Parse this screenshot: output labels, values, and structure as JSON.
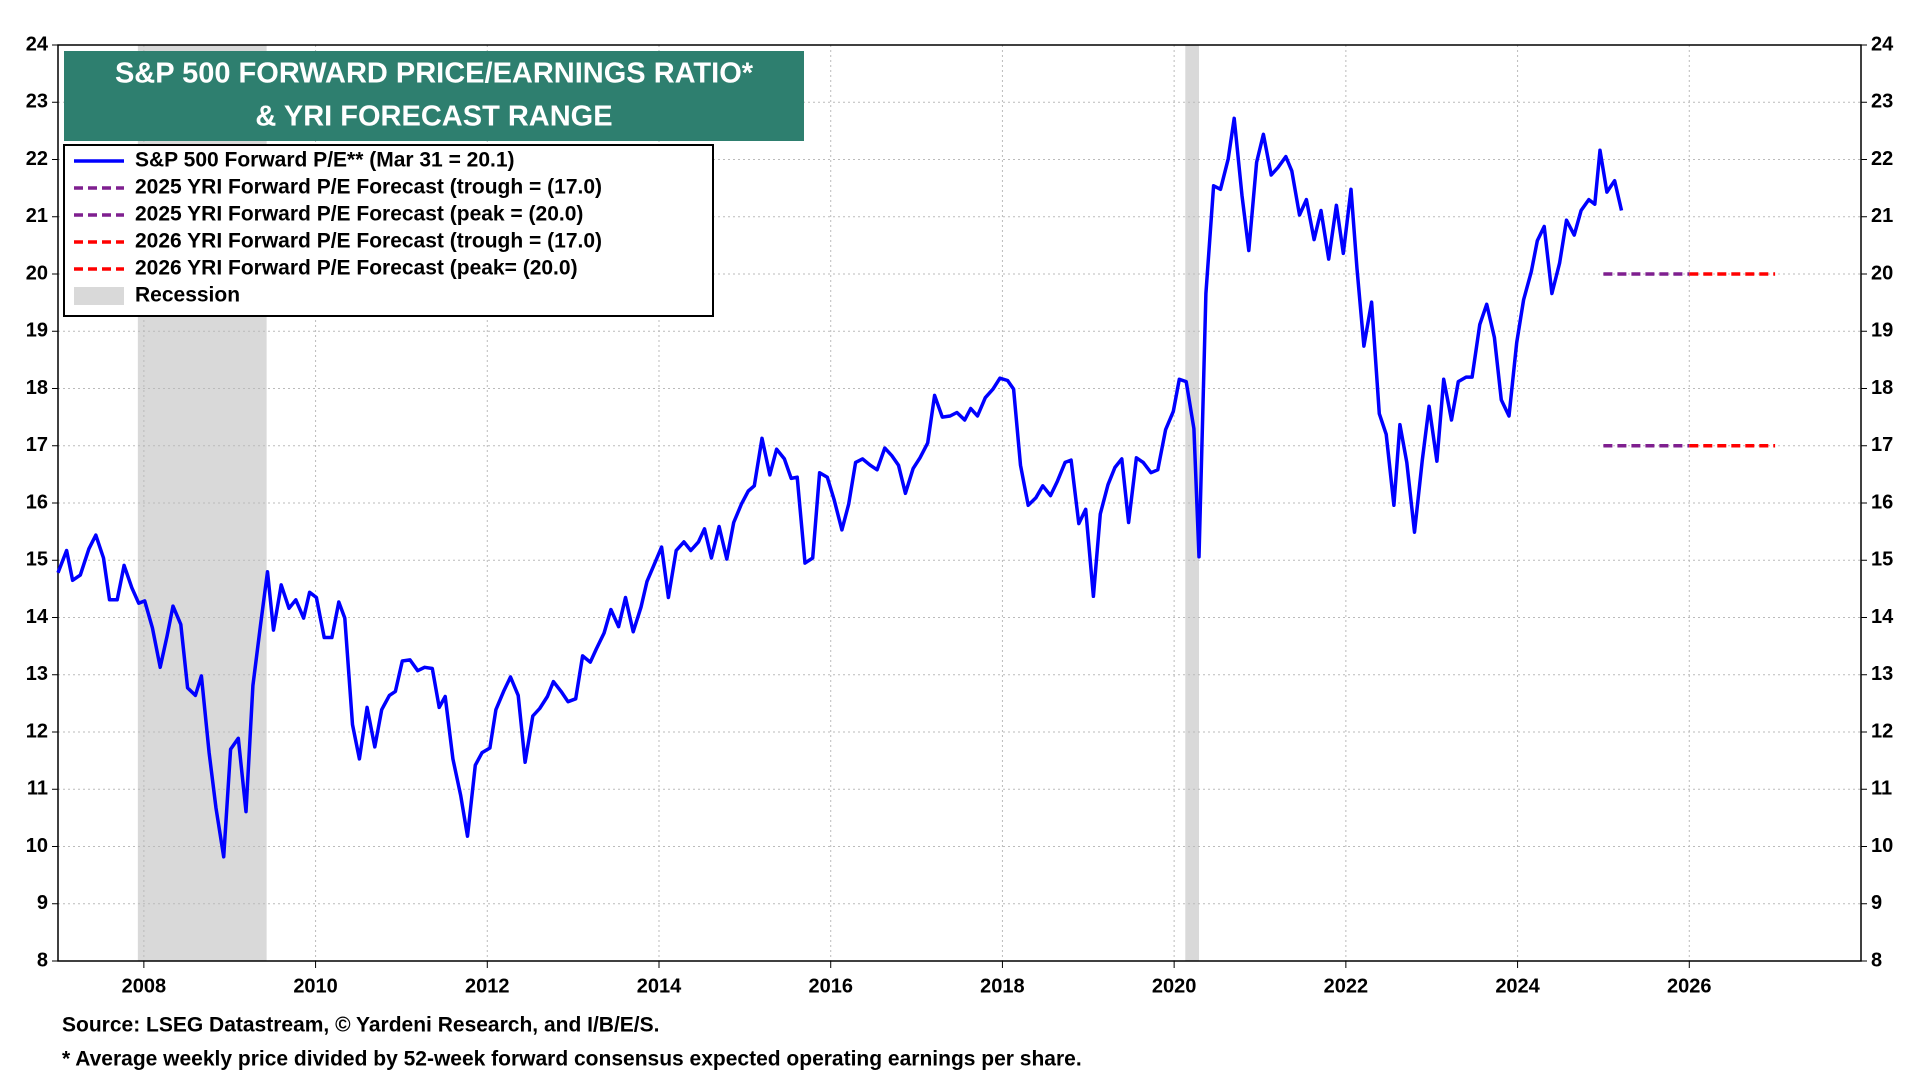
{
  "chart_data": {
    "type": "line",
    "title_lines": [
      "S&P 500 FORWARD PRICE/EARNINGS RATIO*",
      "& YRI FORECAST RANGE"
    ],
    "notes": [
      "Source: LSEG Datastream, © Yardeni Research, and I/B/E/S.",
      "* Average weekly price divided by 52-week forward consensus expected operating earnings per share."
    ],
    "xlim": [
      2007,
      2028
    ],
    "xticks": [
      2008,
      2010,
      2012,
      2014,
      2016,
      2018,
      2020,
      2022,
      2024,
      2026
    ],
    "ylim": [
      8,
      24
    ],
    "yticks": [
      8,
      9,
      10,
      11,
      12,
      13,
      14,
      15,
      16,
      17,
      18,
      19,
      20,
      21,
      22,
      23,
      24
    ],
    "grid": true,
    "recession": {
      "name": "Recession",
      "color": "#d9d9d9",
      "ranges": [
        [
          2007.93,
          2009.43
        ],
        [
          2020.13,
          2020.29
        ]
      ]
    },
    "series": [
      {
        "name": "S&P 500 Forward P/E** (Mar 31 = 20.1)",
        "color": "#0000ff",
        "dash": false,
        "x": [
          2007.0,
          2007.1,
          2007.17,
          2007.26,
          2007.36,
          2007.44,
          2007.53,
          2007.6,
          2007.69,
          2007.77,
          2007.86,
          2007.94,
          2008.01,
          2008.1,
          2008.19,
          2008.27,
          2008.34,
          2008.43,
          2008.51,
          2008.6,
          2008.67,
          2008.76,
          2008.84,
          2008.93,
          2009.01,
          2009.1,
          2009.19,
          2009.27,
          2009.36,
          2009.44,
          2009.51,
          2009.6,
          2009.69,
          2009.77,
          2009.86,
          2009.93,
          2010.01,
          2010.1,
          2010.19,
          2010.27,
          2010.34,
          2010.43,
          2010.51,
          2010.6,
          2010.69,
          2010.77,
          2010.86,
          2010.93,
          2011.01,
          2011.1,
          2011.19,
          2011.27,
          2011.36,
          2011.44,
          2011.51,
          2011.6,
          2011.69,
          2011.77,
          2011.86,
          2011.94,
          2012.03,
          2012.1,
          2012.19,
          2012.27,
          2012.36,
          2012.44,
          2012.53,
          2012.61,
          2012.7,
          2012.77,
          2012.86,
          2012.94,
          2013.03,
          2013.11,
          2013.2,
          2013.27,
          2013.36,
          2013.44,
          2013.53,
          2013.61,
          2013.7,
          2013.79,
          2013.86,
          2013.94,
          2014.03,
          2014.11,
          2014.2,
          2014.29,
          2014.37,
          2014.46,
          2014.53,
          2014.61,
          2014.7,
          2014.79,
          2014.87,
          2014.96,
          2015.04,
          2015.11,
          2015.2,
          2015.29,
          2015.37,
          2015.46,
          2015.54,
          2015.61,
          2015.7,
          2015.79,
          2015.87,
          2015.96,
          2016.04,
          2016.13,
          2016.21,
          2016.29,
          2016.37,
          2016.46,
          2016.54,
          2016.63,
          2016.71,
          2016.79,
          2016.87,
          2016.96,
          2017.04,
          2017.13,
          2017.21,
          2017.3,
          2017.39,
          2017.47,
          2017.56,
          2017.63,
          2017.71,
          2017.8,
          2017.89,
          2017.97,
          2018.06,
          2018.13,
          2018.21,
          2018.3,
          2018.39,
          2018.47,
          2018.56,
          2018.64,
          2018.73,
          2018.8,
          2018.89,
          2018.97,
          2019.06,
          2019.14,
          2019.23,
          2019.31,
          2019.39,
          2019.47,
          2019.56,
          2019.64,
          2019.73,
          2019.81,
          2019.9,
          2019.99,
          2020.06,
          2020.14,
          2020.23,
          2020.29,
          2020.37,
          2020.46,
          2020.54,
          2020.63,
          2020.7,
          2020.79,
          2020.87,
          2020.96,
          2021.04,
          2021.13,
          2021.21,
          2021.3,
          2021.37,
          2021.46,
          2021.54,
          2021.63,
          2021.71,
          2021.8,
          2021.89,
          2021.97,
          2022.06,
          2022.13,
          2022.21,
          2022.3,
          2022.39,
          2022.47,
          2022.56,
          2022.63,
          2022.71,
          2022.8,
          2022.89,
          2022.97,
          2023.06,
          2023.14,
          2023.23,
          2023.31,
          2023.4,
          2023.47,
          2023.56,
          2023.64,
          2023.73,
          2023.81,
          2023.9,
          2023.99,
          2024.07,
          2024.16,
          2024.23,
          2024.31,
          2024.4,
          2024.49,
          2024.57,
          2024.66,
          2024.74,
          2024.83,
          2024.9,
          2024.96,
          2025.04,
          2025.13,
          2025.21
        ],
        "values": [
          14.78,
          15.17,
          14.65,
          14.74,
          15.2,
          15.44,
          15.04,
          14.31,
          14.31,
          14.91,
          14.52,
          14.25,
          14.29,
          13.82,
          13.13,
          13.67,
          14.2,
          13.88,
          12.77,
          12.64,
          12.98,
          11.64,
          10.67,
          9.82,
          11.7,
          11.89,
          10.61,
          12.81,
          13.88,
          14.8,
          13.78,
          14.57,
          14.16,
          14.31,
          13.99,
          14.44,
          14.35,
          13.65,
          13.65,
          14.27,
          13.99,
          12.13,
          11.53,
          12.43,
          11.74,
          12.39,
          12.64,
          12.71,
          13.24,
          13.26,
          13.07,
          13.13,
          13.11,
          12.43,
          12.62,
          11.53,
          10.89,
          10.18,
          11.42,
          11.64,
          11.72,
          12.39,
          12.71,
          12.96,
          12.64,
          11.47,
          12.28,
          12.41,
          12.62,
          12.88,
          12.71,
          12.53,
          12.58,
          13.33,
          13.22,
          13.45,
          13.73,
          14.14,
          13.84,
          14.35,
          13.75,
          14.18,
          14.63,
          14.91,
          15.23,
          14.35,
          15.17,
          15.32,
          15.17,
          15.32,
          15.55,
          15.04,
          15.59,
          15.02,
          15.66,
          15.98,
          16.21,
          16.3,
          17.13,
          16.49,
          16.94,
          16.77,
          16.43,
          16.45,
          14.95,
          15.04,
          16.53,
          16.45,
          16.06,
          15.53,
          15.98,
          16.71,
          16.77,
          16.66,
          16.58,
          16.96,
          16.83,
          16.66,
          16.17,
          16.6,
          16.79,
          17.05,
          17.88,
          17.5,
          17.52,
          17.58,
          17.45,
          17.65,
          17.52,
          17.84,
          17.99,
          18.18,
          18.14,
          17.99,
          16.66,
          15.96,
          16.09,
          16.3,
          16.13,
          16.38,
          16.71,
          16.75,
          15.64,
          15.89,
          14.37,
          15.81,
          16.32,
          16.62,
          16.77,
          15.66,
          16.79,
          16.71,
          16.53,
          16.58,
          17.28,
          17.6,
          18.16,
          18.12,
          17.3,
          15.06,
          19.66,
          21.54,
          21.48,
          22.01,
          22.72,
          21.37,
          20.41,
          21.95,
          22.44,
          21.73,
          21.86,
          22.05,
          21.8,
          21.03,
          21.3,
          20.6,
          21.11,
          20.26,
          21.2,
          20.36,
          21.48,
          20.09,
          18.74,
          19.51,
          17.56,
          17.2,
          15.96,
          17.37,
          16.71,
          15.49,
          16.75,
          17.69,
          16.73,
          18.16,
          17.45,
          18.12,
          18.2,
          18.2,
          19.12,
          19.47,
          18.89,
          17.8,
          17.52,
          18.8,
          19.55,
          20.04,
          20.58,
          20.83,
          19.66,
          20.19,
          20.94,
          20.68,
          21.11,
          21.3,
          21.22,
          22.16,
          21.43,
          21.63,
          21.11
        ]
      },
      {
        "name": "2025 YRI Forward P/E Forecast (trough = (17.0)",
        "color": "#7f1f8f",
        "dash": true,
        "x": [
          2025,
          2026
        ],
        "values": [
          17,
          17
        ]
      },
      {
        "name": "2025 YRI Forward P/E Forecast (peak = (20.0)",
        "color": "#7f1f8f",
        "dash": true,
        "x": [
          2025,
          2026
        ],
        "values": [
          20,
          20
        ]
      },
      {
        "name": "2026 YRI Forward P/E Forecast (trough = (17.0)",
        "color": "#ff0000",
        "dash": true,
        "x": [
          2026,
          2027
        ],
        "values": [
          17,
          17
        ]
      },
      {
        "name": "2026 YRI Forward P/E Forecast (peak= (20.0)",
        "color": "#ff0000",
        "dash": true,
        "x": [
          2026,
          2027
        ],
        "values": [
          20,
          20
        ]
      }
    ]
  }
}
